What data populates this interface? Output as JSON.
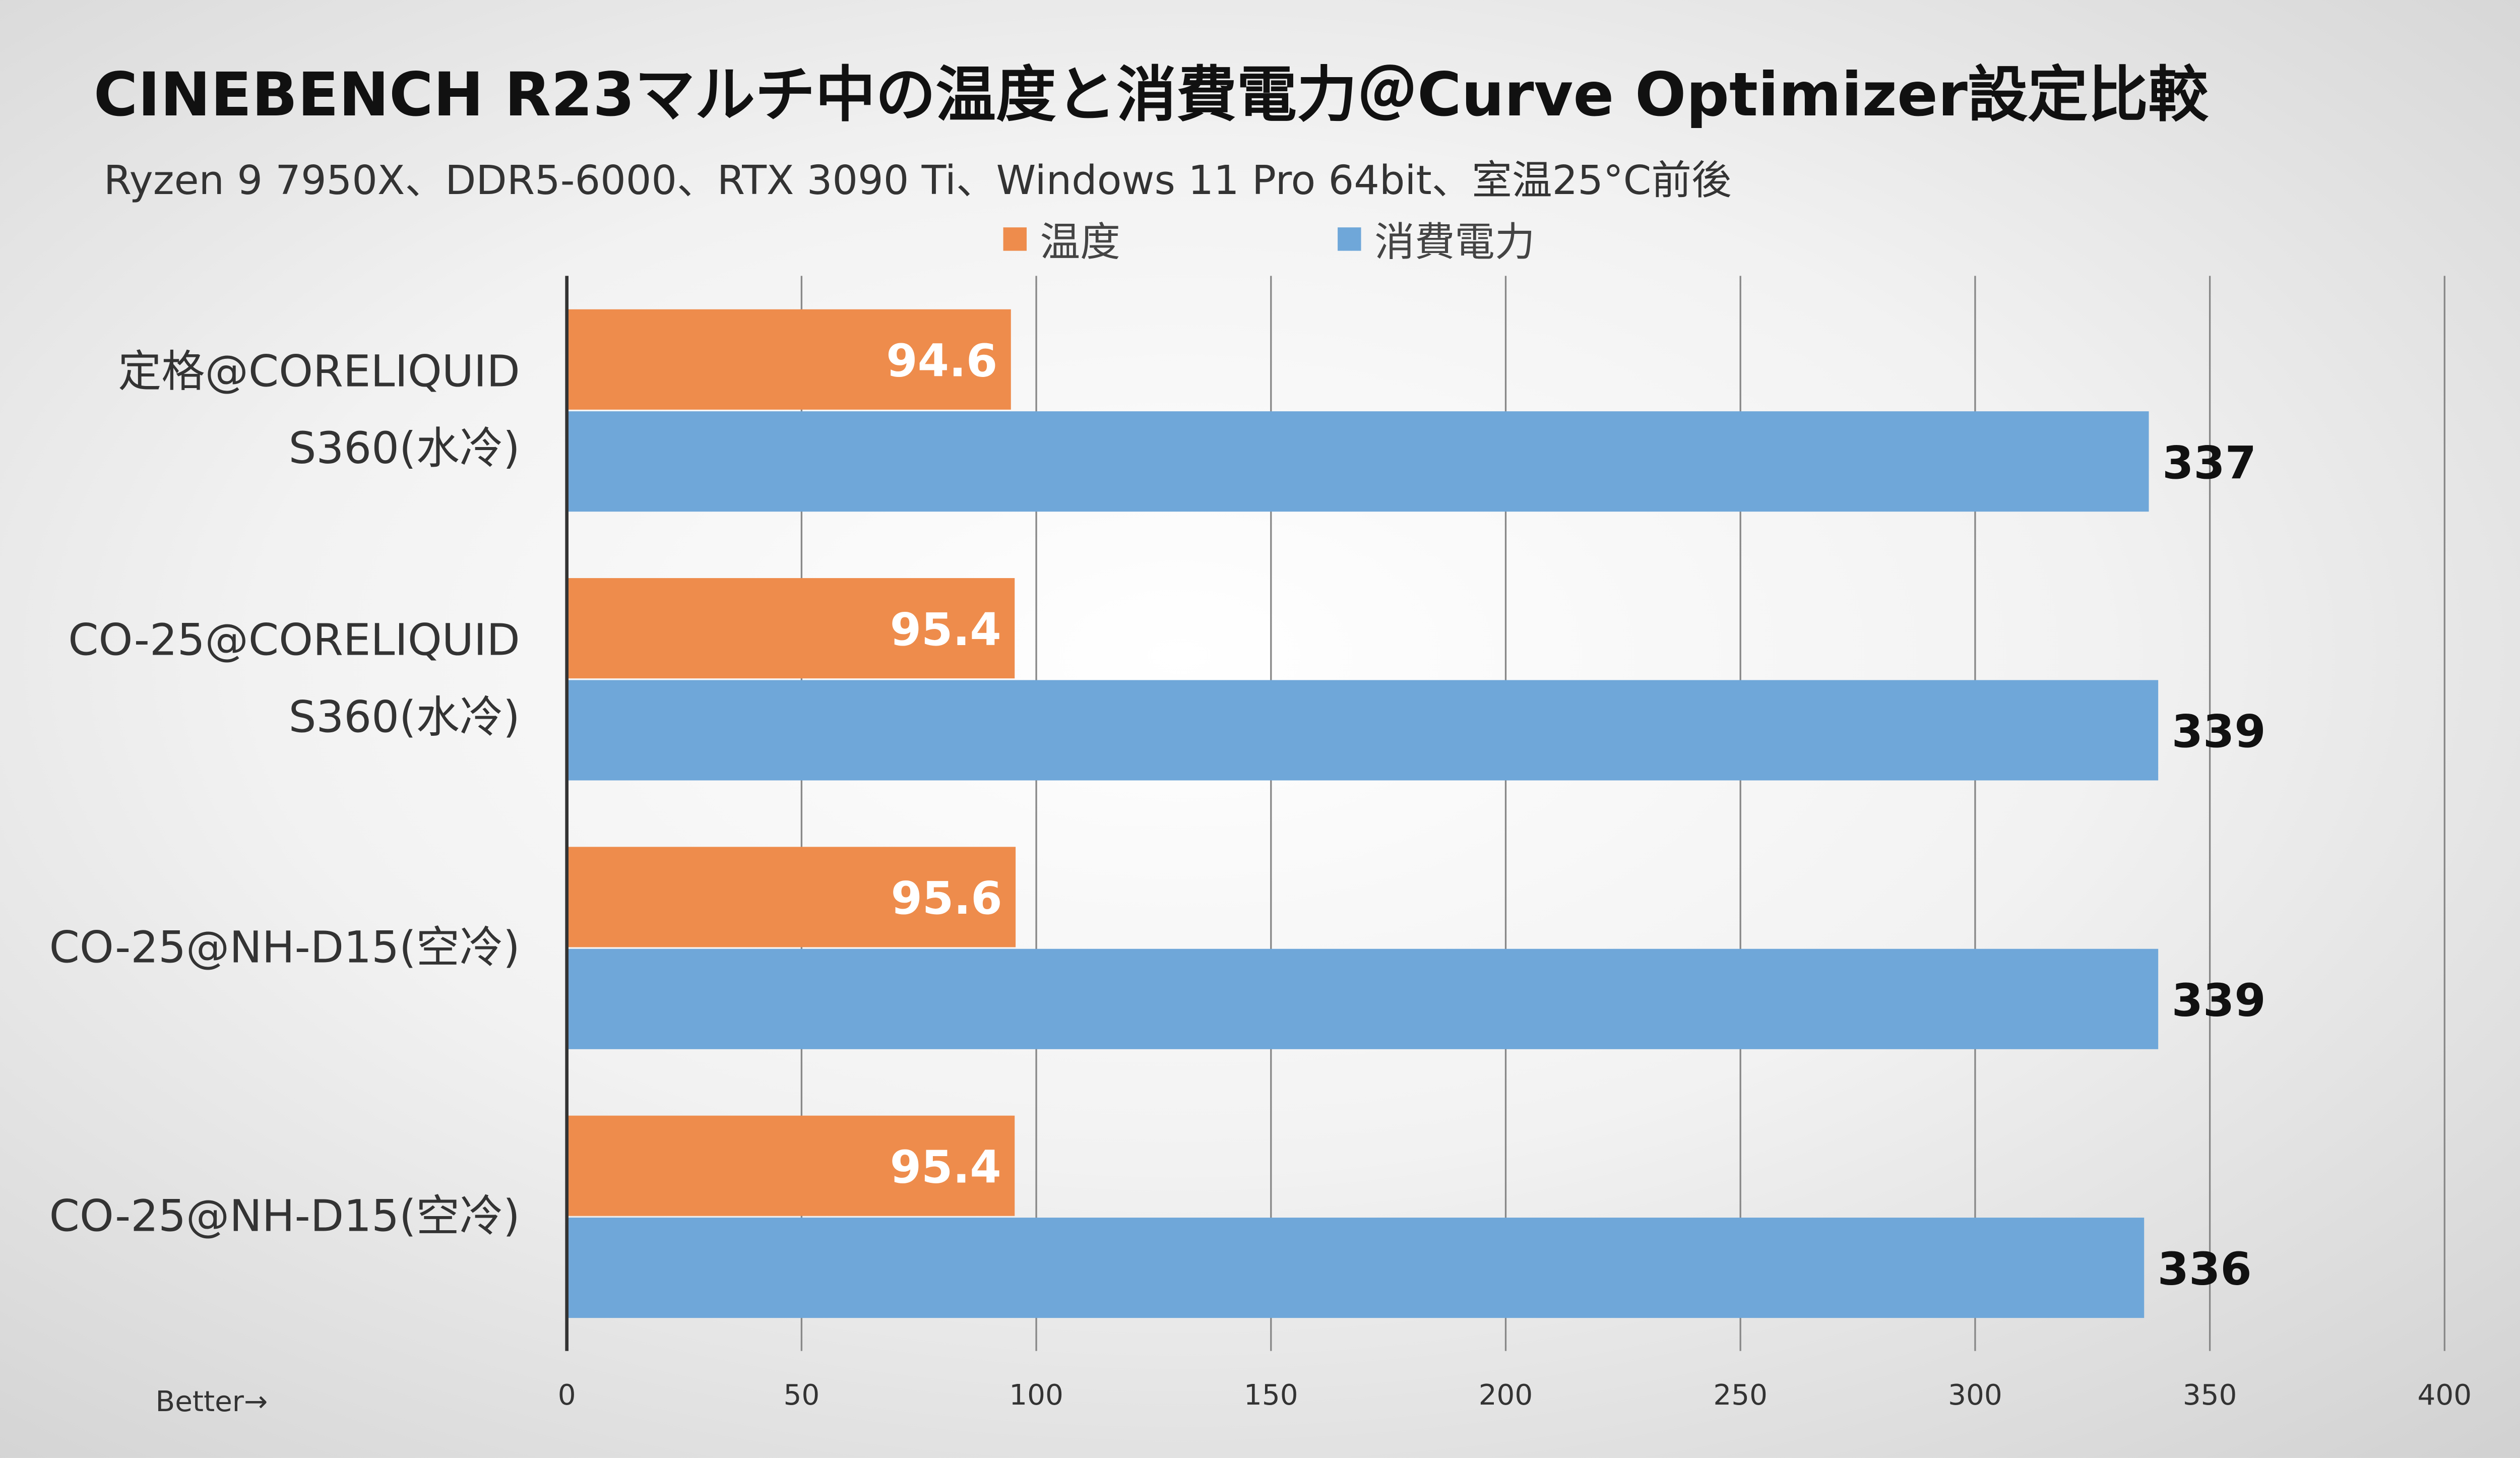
{
  "chart_data": {
    "type": "bar",
    "orientation": "horizontal",
    "title": "CINEBENCH R23マルチ中の温度と消費電力＠Curve Optimizer設定比較",
    "subtitle": "Ryzen 9 7950X、DDR5-6000、RTX 3090 Ti、Windows 11 Pro 64bit、室温25°C前後",
    "categories": [
      [
        "定格@CORELIQUID",
        "S360(水冷)"
      ],
      [
        "CO-25@CORELIQUID",
        "S360(水冷)"
      ],
      [
        "CO-25@NH-D15(空冷)"
      ],
      [
        "CO-25@NH-D15(空冷)"
      ]
    ],
    "series": [
      {
        "name": "温度",
        "color": "#EE8C4C",
        "values": [
          94.6,
          95.4,
          95.6,
          95.4
        ]
      },
      {
        "name": "消費電力",
        "color": "#6FA7D9",
        "values": [
          337,
          339,
          339,
          336
        ]
      }
    ],
    "xlim": [
      0,
      400
    ],
    "xticks": [
      0,
      50,
      100,
      150,
      200,
      250,
      300,
      350,
      400
    ],
    "xlabel": "Better→",
    "legend_position": "top",
    "grid": true
  }
}
